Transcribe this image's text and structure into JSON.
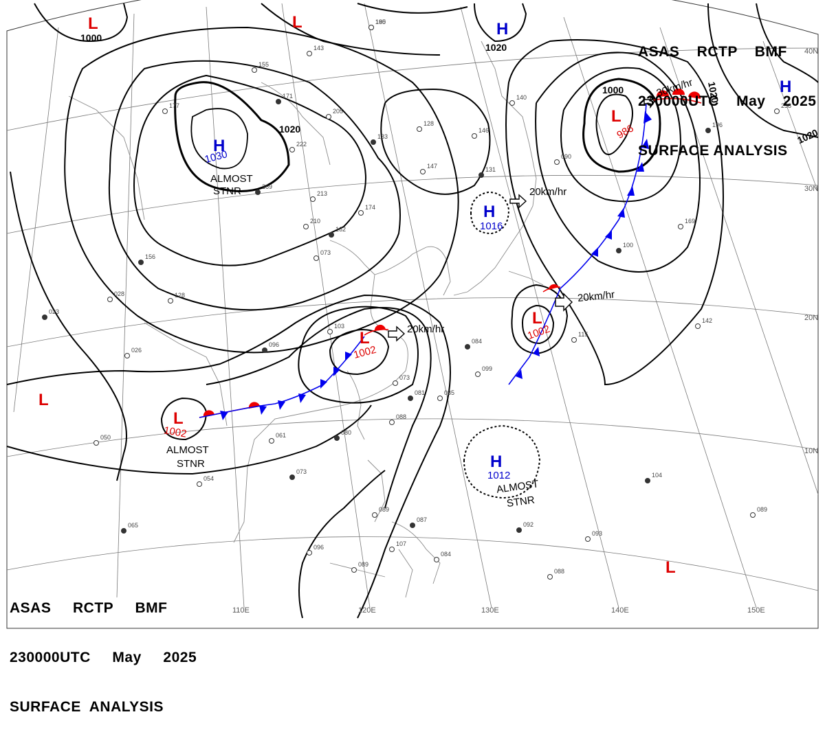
{
  "header_top": {
    "line1": "ASAS    RCTP    BMF",
    "line2": "230000UTC    May    2025",
    "line3": "SURFACE ANALYSIS"
  },
  "header_bottom": {
    "line1": "ASAS     RCTP     BMF",
    "line2": "230000UTC     May     2025",
    "line3": "SURFACE  ANALYSIS"
  },
  "longitude_labels": [
    "110E",
    "120E",
    "130E",
    "140E",
    "150E"
  ],
  "latitude_labels": [
    "40N",
    "30N",
    "20N",
    "10N"
  ],
  "isobar_labels": [
    "1000",
    "1020",
    "1020",
    "1000",
    "1020",
    "1020"
  ],
  "pressure_centers": [
    {
      "type": "L",
      "value": ""
    },
    {
      "type": "L",
      "value": ""
    },
    {
      "type": "H",
      "value": ""
    },
    {
      "type": "H",
      "value": "1030"
    },
    {
      "type": "L",
      "value": "986"
    },
    {
      "type": "H",
      "value": ""
    },
    {
      "type": "H",
      "value": "1016"
    },
    {
      "type": "L",
      "value": "1002"
    },
    {
      "type": "L",
      "value": "1002"
    },
    {
      "type": "L",
      "value": "1002"
    },
    {
      "type": "L",
      "value": ""
    },
    {
      "type": "H",
      "value": "1012"
    },
    {
      "type": "L",
      "value": ""
    }
  ],
  "notes": [
    "ALMOST",
    "STNR",
    "ALMOST",
    "STNR",
    "ALMOST",
    "STNR"
  ],
  "movements": [
    "30km/hr",
    "20km/hr",
    "20km/hr",
    "20km/hr"
  ],
  "station_values": [
    "180",
    "143",
    "155",
    "171",
    "205",
    "222",
    "183",
    "128",
    "146",
    "269",
    "213",
    "210",
    "162",
    "174",
    "147",
    "131",
    "090",
    "140",
    "196",
    "258",
    "169",
    "100",
    "142",
    "115",
    "084",
    "099",
    "073",
    "081",
    "085",
    "088",
    "080",
    "061",
    "054",
    "073",
    "096",
    "089",
    "087",
    "107",
    "084",
    "092",
    "093",
    "088",
    "065",
    "050",
    "026",
    "023",
    "028",
    "128",
    "096",
    "103",
    "089",
    "104",
    "089",
    "073",
    "156",
    "177",
    "195"
  ],
  "colors": {
    "low": "#dd0000",
    "high": "#0000cc",
    "isobar": "#000000",
    "grid": "#777777",
    "coast": "#888888",
    "warm_front": "#ee0000",
    "cold_front": "#0000ee"
  }
}
